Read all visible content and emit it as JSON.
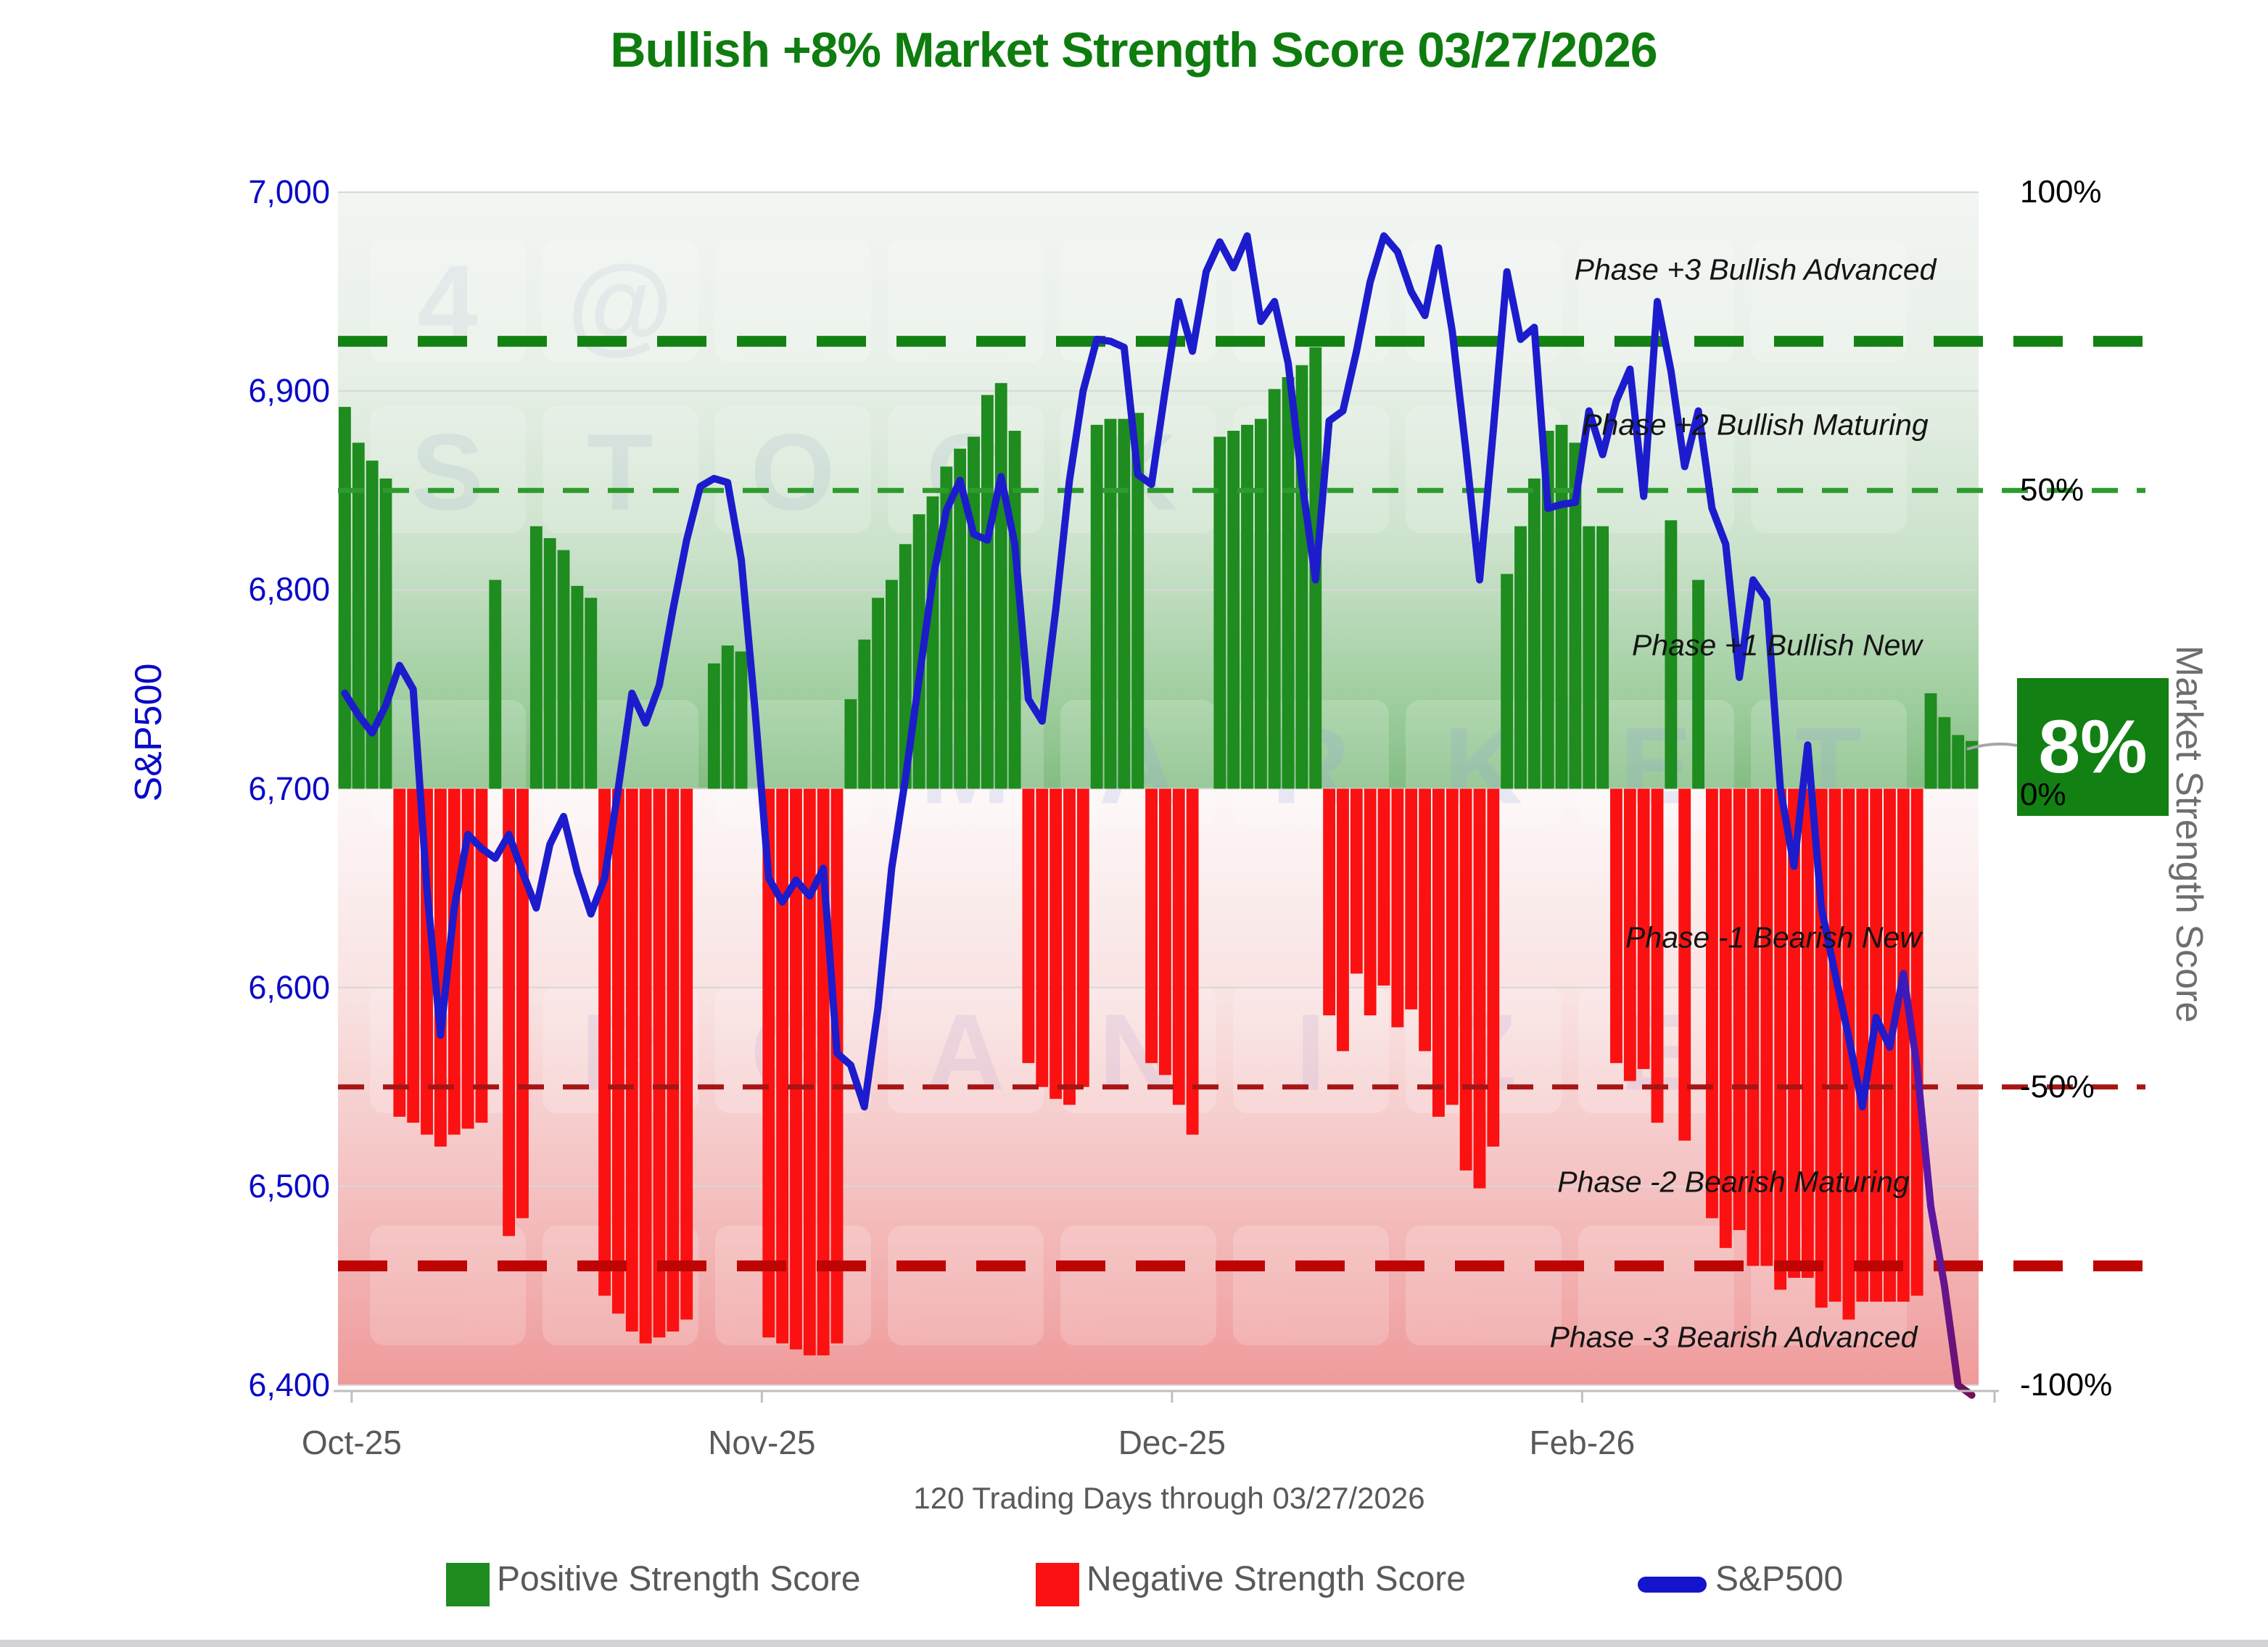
{
  "header": {
    "title": "Bullish +8% Market Strength Score 03/27/2026"
  },
  "axes": {
    "left": {
      "title": "S&P500",
      "range": [
        6400,
        7000
      ],
      "ticks": [
        {
          "value": 7000,
          "label": "7,000"
        },
        {
          "value": 6900,
          "label": "6,900"
        },
        {
          "value": 6800,
          "label": "6,800"
        },
        {
          "value": 6700,
          "label": "6,700"
        },
        {
          "value": 6600,
          "label": "6,600"
        },
        {
          "value": 6500,
          "label": "6,500"
        },
        {
          "value": 6400,
          "label": "6,400"
        }
      ]
    },
    "right": {
      "title": "Market Strength Score",
      "range": [
        -100,
        100
      ],
      "ticks": [
        {
          "value": 100,
          "label": "100%"
        },
        {
          "value": 50,
          "label": "50%"
        },
        {
          "value": 0,
          "label": "0%"
        },
        {
          "value": -50,
          "label": "-50%"
        },
        {
          "value": -100,
          "label": "-100%"
        }
      ]
    },
    "x": {
      "subtitle": "120 Trading Days through 03/27/2026",
      "ticks": [
        {
          "day": 1,
          "label": "Oct-25"
        },
        {
          "day": 31,
          "label": "Nov-25"
        },
        {
          "day": 61,
          "label": "Dec-25"
        },
        {
          "day": 91,
          "label": "Feb-26"
        }
      ]
    }
  },
  "thresholds": [
    {
      "value": 75,
      "style": "thick",
      "color": "#128212"
    },
    {
      "value": 50,
      "style": "thin",
      "color": "#2d9b2d"
    },
    {
      "value": -50,
      "style": "thin",
      "color": "#a81515"
    },
    {
      "value": -80,
      "style": "thick",
      "color": "#bf0404"
    }
  ],
  "phase_labels": [
    {
      "label": "Phase +3 Bullish Advanced",
      "level": 87,
      "x": 2420
    },
    {
      "label": "Phase +2 Bullish Maturing",
      "level": 61,
      "x": 2420
    },
    {
      "label": "Phase +1 Bullish New",
      "level": 24,
      "x": 2450
    },
    {
      "label": "Phase -1 Bearish New",
      "level": -25,
      "x": 2445
    },
    {
      "label": "Phase -2 Bearish Maturing",
      "level": -66,
      "x": 2390
    },
    {
      "label": "Phase -3 Bearish Advanced",
      "level": -92,
      "x": 2390
    }
  ],
  "callout": {
    "value_label": "8%",
    "color": "#128012"
  },
  "legend": [
    {
      "label": "Positive Strength Score",
      "swatch": "square",
      "color": "#1e8c1e"
    },
    {
      "label": "Negative Strength Score",
      "swatch": "square",
      "color": "#fb1111"
    },
    {
      "label": "S&P500",
      "swatch": "line",
      "color": "#1414cc"
    }
  ],
  "chart_data": {
    "type": "combo",
    "n_points": 120,
    "x_description": "120 trading days, Oct-25 through 03/27/2026",
    "left_axis_range": [
      6400,
      7000
    ],
    "right_axis_range": [
      -100,
      100
    ],
    "series": [
      {
        "name": "Market Strength Score",
        "type": "bar",
        "axis": "right",
        "unit": "%",
        "positive_color": "#1e8c1e",
        "negative_color": "#fb1111",
        "values": [
          64,
          58,
          55,
          52,
          -55,
          -56,
          -58,
          -60,
          -58,
          -57,
          -56,
          35,
          -75,
          -72,
          44,
          42,
          40,
          34,
          32,
          -85,
          -88,
          -91,
          -93,
          -92,
          -91,
          -89,
          2,
          21,
          24,
          23,
          -2,
          -92,
          -93,
          -94,
          -95,
          -95,
          -93,
          15,
          25,
          32,
          35,
          41,
          46,
          49,
          54,
          57,
          59,
          66,
          68,
          60,
          -46,
          -50,
          -52,
          -53,
          -50,
          61,
          62,
          62,
          63,
          -46,
          -48,
          -53,
          -58,
          2,
          59,
          60,
          61,
          62,
          67,
          69,
          71,
          74,
          -38,
          -44,
          -31,
          -38,
          -33,
          -40,
          -37,
          -44,
          -55,
          -53,
          -64,
          -67,
          -60,
          36,
          44,
          52,
          60,
          61,
          58,
          44,
          44,
          -46,
          -49,
          -47,
          -56,
          45,
          -59,
          35,
          -72,
          -77,
          -74,
          -80,
          -80,
          -84,
          -82,
          -82,
          -87,
          -86,
          -89,
          -86,
          -86,
          -86,
          -86,
          -85,
          16,
          12,
          9,
          8
        ]
      },
      {
        "name": "S&P500",
        "type": "line",
        "axis": "left",
        "color": "#1c1ccd",
        "end_color": "#7a0d45",
        "values": [
          6748,
          6737,
          6728,
          6742,
          6762,
          6750,
          6650,
          6576,
          6640,
          6677,
          6670,
          6665,
          6677,
          6658,
          6640,
          6672,
          6686,
          6658,
          6637,
          6655,
          6700,
          6748,
          6733,
          6752,
          6790,
          6825,
          6852,
          6856,
          6854,
          6815,
          6740,
          6655,
          6643,
          6654,
          6646,
          6660,
          6567,
          6561,
          6540,
          6590,
          6660,
          6705,
          6755,
          6805,
          6840,
          6855,
          6828,
          6825,
          6857,
          6823,
          6745,
          6734,
          6790,
          6855,
          6900,
          6926,
          6925,
          6922,
          6858,
          6853,
          6900,
          6945,
          6920,
          6960,
          6975,
          6962,
          6978,
          6935,
          6945,
          6914,
          6855,
          6805,
          6885,
          6890,
          6920,
          6955,
          6978,
          6970,
          6950,
          6938,
          6972,
          6930,
          6870,
          6805,
          6880,
          6960,
          6926,
          6932,
          6841,
          6843,
          6844,
          6890,
          6868,
          6895,
          6911,
          6847,
          6945,
          6910,
          6862,
          6890,
          6841,
          6823,
          6756,
          6805,
          6795,
          6700,
          6661,
          6722,
          6640,
          6607,
          6575,
          6540,
          6585,
          6570,
          6607,
          6560,
          6490,
          6450,
          6400,
          6395
        ]
      }
    ],
    "final_value_callout": {
      "series": "Market Strength Score",
      "value": 8,
      "label": "8%"
    }
  },
  "watermark": {
    "rows": [
      {
        "letters": [
          "4",
          "@"
        ],
        "note": "faint keyboard symbols"
      },
      {
        "letters": [
          "S",
          "T",
          "O",
          "C",
          "K"
        ]
      },
      {
        "letters": [
          "M",
          "A",
          "R",
          "K",
          "E",
          "T"
        ]
      },
      {
        "letters": [
          "O",
          "R",
          "G",
          "A",
          "N",
          "I",
          "Z",
          "E"
        ]
      }
    ]
  }
}
